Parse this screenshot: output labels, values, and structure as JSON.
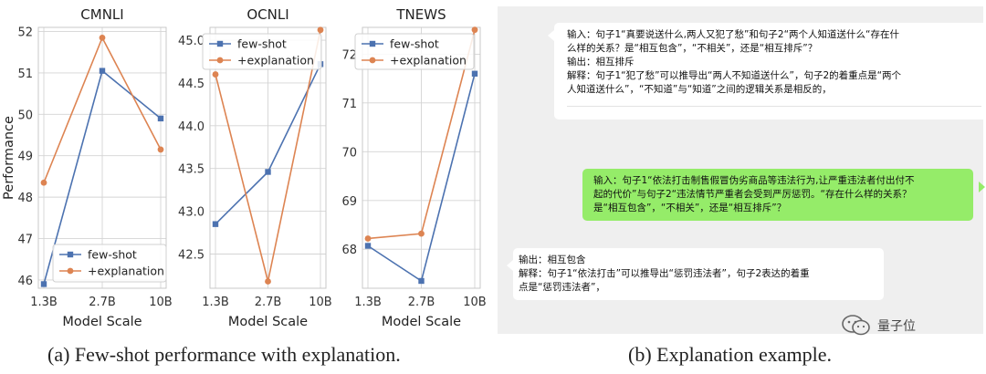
{
  "chart_data": [
    {
      "type": "line",
      "title": "CMNLI",
      "xlabel": "Model Scale",
      "ylabel": "Performance",
      "categories": [
        "1.3B",
        "2.7B",
        "10B"
      ],
      "ylim": [
        45.8,
        52.1
      ],
      "yticks": [
        "46",
        "47",
        "48",
        "49",
        "50",
        "51",
        "52"
      ],
      "legend": "bottom-left",
      "grid": true,
      "series": [
        {
          "name": "few-shot",
          "color": "#4c72b0",
          "marker": "square",
          "values": [
            45.9,
            51.05,
            49.9
          ]
        },
        {
          "name": "+explanation",
          "color": "#dd8452",
          "marker": "circle",
          "values": [
            48.35,
            51.85,
            49.15
          ]
        }
      ]
    },
    {
      "type": "line",
      "title": "OCNLI",
      "xlabel": "Model Scale",
      "ylabel": "",
      "categories": [
        "1.3B",
        "2.7B",
        "10B"
      ],
      "ylim": [
        42.1,
        45.15
      ],
      "yticks": [
        "42.5",
        "43.0",
        "43.5",
        "44.0",
        "44.5",
        "45.0"
      ],
      "legend": "top-left",
      "grid": true,
      "series": [
        {
          "name": "few-shot",
          "color": "#4c72b0",
          "marker": "square",
          "values": [
            42.85,
            43.46,
            44.72
          ]
        },
        {
          "name": "+explanation",
          "color": "#dd8452",
          "marker": "circle",
          "values": [
            44.6,
            42.18,
            45.12
          ]
        }
      ]
    },
    {
      "type": "line",
      "title": "TNEWS",
      "xlabel": "Model Scale",
      "ylabel": "",
      "categories": [
        "1.3B",
        "2.7B",
        "10B"
      ],
      "ylim": [
        67.2,
        72.55
      ],
      "yticks": [
        "68",
        "69",
        "70",
        "71",
        "72"
      ],
      "legend": "top-left",
      "grid": true,
      "series": [
        {
          "name": "few-shot",
          "color": "#4c72b0",
          "marker": "square",
          "values": [
            68.07,
            67.35,
            71.6
          ]
        },
        {
          "name": "+explanation",
          "color": "#dd8452",
          "marker": "circle",
          "values": [
            68.22,
            68.32,
            72.5
          ]
        }
      ]
    }
  ],
  "captions": {
    "left": "(a) Few-shot performance with explanation.",
    "right": "(b) Explanation example."
  },
  "bubbles": {
    "prompt": {
      "lines": [
        "输入：句子1“真要说送什么,两人又犯了愁”和句子2“两个人知道送什么“存在什",
        "么样的关系？是“相互包含”，“不相关”，还是“相互排斥”？",
        "输出：相互排斥",
        "解释：句子1“犯了愁”可以推导出“两人不知道送什么”，句子2的着重点是“两个",
        "人知道送什么”，“不知道”与“知道”之间的逻辑关系是相反的，"
      ],
      "footer": ""
    },
    "input": {
      "lines": [
        "输入：句子1“依法打击制售假冒伪劣商品等违法行为,让严重违法者付出付不",
        "起的代价”与句子2“违法情节严重者会受到严厉惩罚。“存在什么样的关系？",
        "是“相互包含”，“不相关”，还是“相互排斥”？"
      ]
    },
    "output": {
      "lines": [
        "输出：相互包含",
        "解释：句子1“依法打击”可以推导出“惩罚违法者”，句子2表达的着重",
        "点是“惩罚违法者”，"
      ]
    }
  },
  "watermark": {
    "text": "量子位",
    "icon": "wechat-icon"
  }
}
